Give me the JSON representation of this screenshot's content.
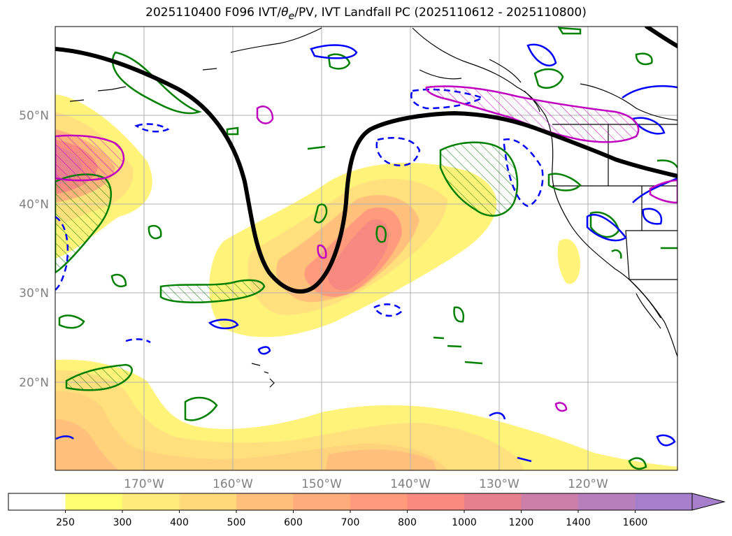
{
  "title": {
    "prefix": "2025110400 F096 IVT/",
    "theta": "θ",
    "theta_sub": "e",
    "suffix": "/PV, IVT Landfall PC (2025110612 - 2025110800)"
  },
  "lat_labels": [
    "50°N",
    "40°N",
    "30°N",
    "20°N"
  ],
  "lon_labels": [
    "170°W",
    "160°W",
    "150°W",
    "140°W",
    "130°W",
    "120°W"
  ],
  "colorbar": {
    "ticks": [
      "250",
      "300",
      "400",
      "500",
      "600",
      "700",
      "800",
      "1000",
      "1200",
      "1400",
      "1600"
    ],
    "colors": [
      "#ffffff",
      "#fffe73",
      "#ffeb7a",
      "#ffd97a",
      "#ffc07c",
      "#ffac7c",
      "#ff9a7c",
      "#fa8a7f",
      "#e6808f",
      "#cc7fa8",
      "#b77fbb",
      "#a57fcb"
    ],
    "extend": "max"
  },
  "colors": {
    "jet_contour": "#000000",
    "theta_e_contour": "#008000",
    "pv_contour": "#0000ff",
    "landfall_pc": "#c000c0",
    "coast": "#000000",
    "grid": "#b0b0b0",
    "axis_label": "#808080"
  }
}
